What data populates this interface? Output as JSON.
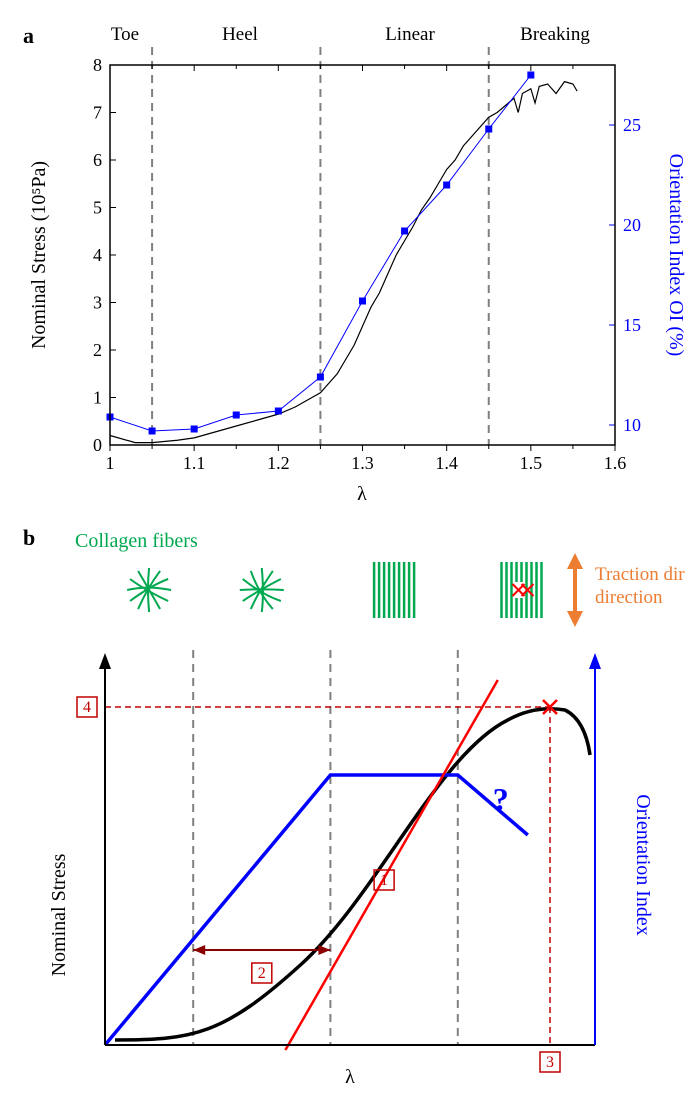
{
  "panelA": {
    "label": "a",
    "regions": [
      "Toe",
      "Heel",
      "Linear",
      "Breaking"
    ],
    "xlabel": "λ",
    "ylabel_left": "Nominal Stress (10⁵Pa)",
    "ylabel_right": "Orientation Index OI (%)",
    "xlim": [
      1.0,
      1.6
    ],
    "ylim_left": [
      0,
      8
    ],
    "ylim_right": [
      9,
      28
    ],
    "xticks": [
      1,
      1.1,
      1.2,
      1.3,
      1.4,
      1.5,
      1.6
    ],
    "yticks_left": [
      0,
      1,
      2,
      3,
      4,
      5,
      6,
      7,
      8
    ],
    "yticks_right": [
      10,
      15,
      20,
      25
    ],
    "dividers_x": [
      1.05,
      1.25,
      1.45
    ],
    "stress_curve": {
      "color": "#000000",
      "linewidth": 1.2,
      "data": [
        [
          1.0,
          0.2
        ],
        [
          1.03,
          0.05
        ],
        [
          1.05,
          0.05
        ],
        [
          1.08,
          0.1
        ],
        [
          1.1,
          0.15
        ],
        [
          1.12,
          0.25
        ],
        [
          1.15,
          0.4
        ],
        [
          1.18,
          0.55
        ],
        [
          1.2,
          0.65
        ],
        [
          1.22,
          0.8
        ],
        [
          1.24,
          1.0
        ],
        [
          1.25,
          1.1
        ],
        [
          1.26,
          1.3
        ],
        [
          1.27,
          1.5
        ],
        [
          1.28,
          1.8
        ],
        [
          1.29,
          2.1
        ],
        [
          1.3,
          2.5
        ],
        [
          1.31,
          2.9
        ],
        [
          1.32,
          3.2
        ],
        [
          1.33,
          3.6
        ],
        [
          1.34,
          4.0
        ],
        [
          1.35,
          4.3
        ],
        [
          1.36,
          4.6
        ],
        [
          1.37,
          4.95
        ],
        [
          1.38,
          5.2
        ],
        [
          1.39,
          5.5
        ],
        [
          1.4,
          5.8
        ],
        [
          1.41,
          6.0
        ],
        [
          1.42,
          6.3
        ],
        [
          1.43,
          6.5
        ],
        [
          1.44,
          6.7
        ],
        [
          1.45,
          6.9
        ],
        [
          1.46,
          7.0
        ],
        [
          1.47,
          7.15
        ],
        [
          1.48,
          7.3
        ],
        [
          1.485,
          7.0
        ],
        [
          1.49,
          7.4
        ],
        [
          1.5,
          7.5
        ],
        [
          1.505,
          7.2
        ],
        [
          1.51,
          7.55
        ],
        [
          1.52,
          7.6
        ],
        [
          1.53,
          7.4
        ],
        [
          1.54,
          7.65
        ],
        [
          1.55,
          7.6
        ],
        [
          1.555,
          7.45
        ]
      ]
    },
    "oi_points": {
      "color": "#0000ff",
      "marker_size": 7,
      "data": [
        [
          1.0,
          10.4
        ],
        [
          1.05,
          9.7
        ],
        [
          1.1,
          9.8
        ],
        [
          1.15,
          10.5
        ],
        [
          1.2,
          10.7
        ],
        [
          1.25,
          12.4
        ],
        [
          1.3,
          16.2
        ],
        [
          1.35,
          19.7
        ],
        [
          1.4,
          22.0
        ],
        [
          1.45,
          24.8
        ],
        [
          1.5,
          27.5
        ]
      ]
    }
  },
  "panelB": {
    "label": "b",
    "fibers_label": "Collagen fibers",
    "fibers_color": "#00a84f",
    "traction_label": "Traction direction",
    "traction_color": "#ed7d31",
    "xlabel": "λ",
    "ylabel_left": "Nominal Stress",
    "ylabel_right": "Orientation Index",
    "ylabel_right_color": "#0000ff",
    "question_mark": "?",
    "question_color": "#0000ff",
    "box_labels": [
      "1",
      "2",
      "3",
      "4"
    ],
    "box_color": "#c00000",
    "stress_color": "#000000",
    "tangent_color": "#ff0000",
    "oi_color": "#0000ff",
    "dashed_color": "#c00000"
  }
}
